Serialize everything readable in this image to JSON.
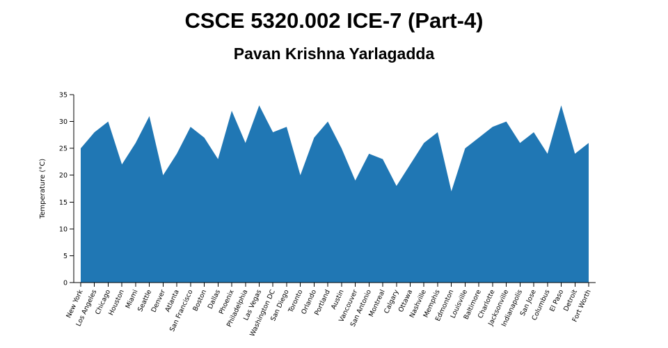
{
  "page": {
    "title": "CSCE 5320.002 ICE-7 (Part-4)",
    "subtitle": "Pavan Krishna Yarlagadda"
  },
  "chart_data": {
    "type": "area",
    "ylabel": "Temperature (°C)",
    "xlabel": "",
    "ylim": [
      0,
      35
    ],
    "yticks": [
      0,
      5,
      10,
      15,
      20,
      25,
      30,
      35
    ],
    "fill_color": "#2077b4",
    "grid": false,
    "categories": [
      "New York",
      "Los Angeles",
      "Chicago",
      "Houston",
      "Miami",
      "Seattle",
      "Denver",
      "Atlanta",
      "San Francisco",
      "Boston",
      "Dallas",
      "Phoenix",
      "Philadelphia",
      "Las Vegas",
      "Washington DC",
      "San Diego",
      "Toronto",
      "Orlando",
      "Portland",
      "Austin",
      "Vancouver",
      "San Antonio",
      "Montreal",
      "Calgary",
      "Ottawa",
      "Nashville",
      "Memphis",
      "Edmonton",
      "Louisville",
      "Baltimore",
      "Charlotte",
      "Jacksonville",
      "Indianapolis",
      "San Jose",
      "Columbus",
      "El Paso",
      "Detroit",
      "Fort Worth"
    ],
    "values": [
      25,
      28,
      30,
      22,
      26,
      31,
      20,
      24,
      29,
      27,
      23,
      32,
      26,
      33,
      28,
      29,
      20,
      27,
      30,
      25,
      19,
      24,
      23,
      18,
      22,
      26,
      28,
      17,
      25,
      27,
      29,
      30,
      26,
      28,
      24,
      33,
      24,
      26
    ]
  }
}
